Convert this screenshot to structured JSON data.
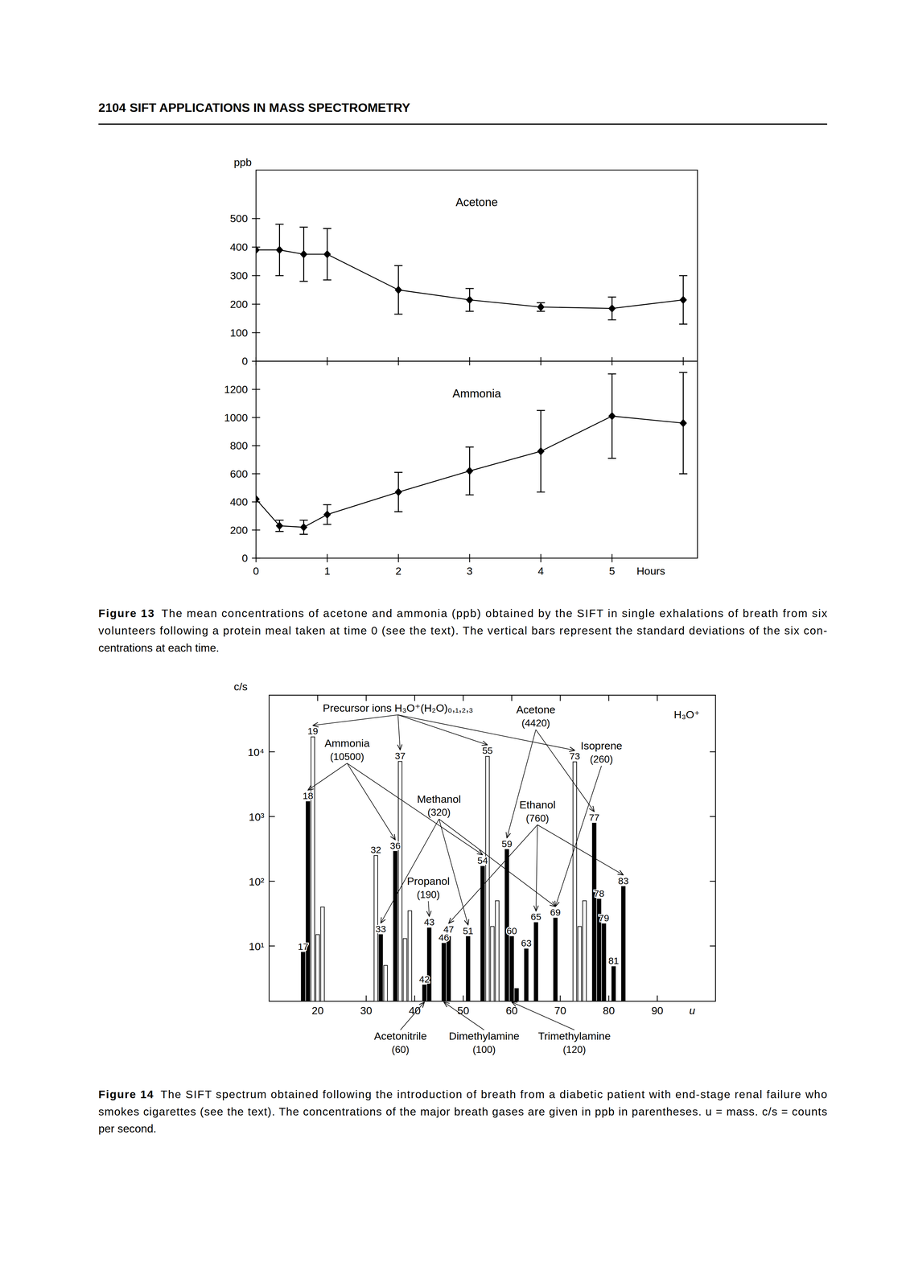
{
  "header": {
    "page": "2104",
    "title": "SIFT APPLICATIONS IN MASS SPECTROMETRY"
  },
  "chart_data": [
    {
      "type": "line",
      "title": "Acetone",
      "y_label": "ppb",
      "x": [
        0,
        0.33,
        0.67,
        1,
        2,
        3,
        4,
        5,
        6
      ],
      "values": [
        390,
        390,
        375,
        375,
        250,
        215,
        190,
        185,
        215
      ],
      "error": [
        null,
        90,
        95,
        90,
        85,
        40,
        15,
        40,
        85
      ],
      "xlim": [
        0,
        6.2
      ],
      "ylim": [
        0,
        670
      ],
      "xticks": [
        0,
        1,
        2,
        3,
        4,
        5,
        6
      ],
      "yticks": [
        0,
        100,
        200,
        300,
        400,
        500
      ],
      "tick_labels": "y",
      "marker": "diamond",
      "color": "#000000"
    },
    {
      "type": "line",
      "title": "Ammonia",
      "x_label": "Hours",
      "x": [
        0,
        0.33,
        0.67,
        1,
        2,
        3,
        4,
        5,
        6
      ],
      "values": [
        420,
        230,
        220,
        310,
        470,
        620,
        760,
        1010,
        960
      ],
      "error": [
        null,
        40,
        50,
        70,
        140,
        170,
        290,
        300,
        360
      ],
      "xlim": [
        0,
        6.2
      ],
      "ylim": [
        0,
        1400
      ],
      "xticks": [
        0,
        1,
        2,
        3,
        4,
        5
      ],
      "yticks": [
        0,
        200,
        400,
        600,
        800,
        1000,
        1200
      ],
      "marker": "diamond",
      "color": "#000000"
    },
    {
      "type": "bar",
      "log": "y",
      "y_label": "c/s",
      "x_label": "u",
      "x": [
        17,
        18,
        19,
        20,
        21,
        32,
        33,
        34,
        36,
        37,
        38,
        39,
        42,
        43,
        46,
        47,
        51,
        54,
        55,
        56,
        57,
        59,
        60,
        61,
        63,
        65,
        69,
        73,
        74,
        75,
        77,
        78,
        79,
        81,
        83
      ],
      "series": [
        {
          "color": "#000000",
          "values": [
            8,
            1700,
            null,
            null,
            null,
            null,
            15,
            null,
            290,
            null,
            null,
            null,
            2.5,
            19,
            11,
            14,
            14,
            170,
            null,
            null,
            null,
            310,
            14,
            2.2,
            9,
            23,
            27,
            null,
            null,
            null,
            790,
            53,
            22,
            4.8,
            83
          ]
        },
        {
          "color": "#ffffff",
          "values": [
            null,
            null,
            17000,
            15,
            40,
            250,
            null,
            5,
            null,
            7100,
            13,
            35,
            null,
            null,
            null,
            null,
            null,
            null,
            8500,
            20,
            50,
            null,
            null,
            null,
            null,
            null,
            null,
            7000,
            20,
            50,
            null,
            null,
            null,
            null,
            null
          ]
        }
      ],
      "xlim": [
        10,
        102
      ],
      "ylim": [
        1.4,
        75000
      ],
      "xticks": [
        20,
        30,
        40,
        50,
        60,
        70,
        80,
        90
      ],
      "yticks": [
        {
          "value": 10,
          "label": "10¹"
        },
        {
          "value": 100,
          "label": "10²"
        },
        {
          "value": 1000,
          "label": "10³"
        },
        {
          "value": 10000,
          "label": "10⁴"
        }
      ],
      "peak_labels": [
        17,
        18,
        19,
        32,
        33,
        36,
        37,
        42,
        43,
        46,
        47,
        51,
        54,
        55,
        59,
        60,
        63,
        65,
        69,
        73,
        77,
        78,
        79,
        81,
        83
      ],
      "annotations": [
        {
          "text": "Precursor ions H₃O⁺(H₂O)₀,₁,₂,₃",
          "targets": [
            19,
            37,
            55,
            73
          ]
        },
        {
          "text": "Acetone",
          "ppb": "(4420)",
          "targets": [
            59,
            77
          ]
        },
        {
          "text": "H₃O⁺"
        },
        {
          "text": "Ammonia",
          "ppb": "(10500)",
          "targets": [
            18,
            36,
            54
          ]
        },
        {
          "text": "Isoprene",
          "ppb": "(260)",
          "targets": [
            69
          ]
        },
        {
          "text": "Methanol",
          "ppb": "(320)",
          "targets": [
            33,
            51,
            69
          ]
        },
        {
          "text": "Ethanol",
          "ppb": "(760)",
          "targets": [
            47,
            65,
            83
          ]
        },
        {
          "text": "Propanol",
          "ppb": "(190)",
          "targets": [
            43
          ]
        },
        {
          "text": "Acetonitrile",
          "ppb": "(60)",
          "targets": [
            42
          ]
        },
        {
          "text": "Dimethylamine",
          "ppb": "(100)",
          "targets": [
            46
          ]
        },
        {
          "text": "Trimethylamine",
          "ppb": "(120)",
          "targets": [
            60
          ]
        }
      ]
    }
  ],
  "captions": [
    {
      "label": "Figure 13",
      "lines": [
        "The mean concentrations of acetone and ammonia (ppb) obtained by the SIFT in single exhalations of breath from six",
        "volunteers following a protein meal taken at time 0 (see the text). The vertical bars represent the standard deviations of the six con-",
        "centrations at each time."
      ]
    },
    {
      "label": "Figure 14",
      "lines": [
        "The SIFT spectrum obtained following the introduction of breath from a diabetic patient with end-stage renal failure who",
        "smokes cigarettes (see the text). The concentrations of the major breath gases are given in ppb in parentheses. u = mass. c/s = counts",
        "per second."
      ]
    }
  ]
}
